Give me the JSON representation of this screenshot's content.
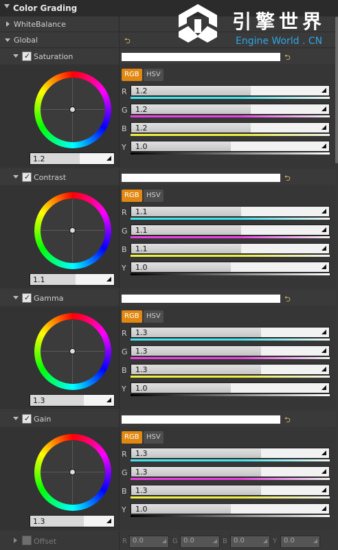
{
  "panel": {
    "title": "Color Grading",
    "rows": [
      {
        "label": "WhiteBalance"
      },
      {
        "label": "Global"
      }
    ],
    "reset_glyph": "⮌"
  },
  "logo": {
    "title": "引擎世界",
    "subtitle": "Engine World . CN"
  },
  "color_mode": {
    "rgb": "RGB",
    "hsv": "HSV"
  },
  "sections": [
    {
      "label": "Saturation",
      "wheel_value": "1.2",
      "wheel_fill": 0.6,
      "r": "1.2",
      "g": "1.2",
      "b": "1.2",
      "y": "1.0",
      "rgb_fill": 0.6,
      "y_fill": 0.5
    },
    {
      "label": "Contrast",
      "wheel_value": "1.1",
      "wheel_fill": 0.55,
      "r": "1.1",
      "g": "1.1",
      "b": "1.1",
      "y": "1.0",
      "rgb_fill": 0.55,
      "y_fill": 0.5
    },
    {
      "label": "Gamma",
      "wheel_value": "1.3",
      "wheel_fill": 0.65,
      "r": "1.3",
      "g": "1.3",
      "b": "1.3",
      "y": "1.0",
      "rgb_fill": 0.65,
      "y_fill": 0.5
    },
    {
      "label": "Gain",
      "wheel_value": "1.3",
      "wheel_fill": 0.65,
      "r": "1.3",
      "g": "1.3",
      "b": "1.3",
      "y": "1.0",
      "rgb_fill": 0.65,
      "y_fill": 0.5
    }
  ],
  "offset": {
    "label": "Offset",
    "r": "0.0",
    "g": "0.0",
    "b": "0.0",
    "y": "0.0"
  },
  "channel_letters": {
    "r": "R",
    "g": "G",
    "b": "B",
    "y": "Y"
  },
  "colors": {
    "accent": "#e08812",
    "r_strip": "#3ee6f0",
    "g_strip": "#ee3ee6",
    "b_strip": "#f0f03e",
    "logo_sub": "#2fa6e6"
  }
}
